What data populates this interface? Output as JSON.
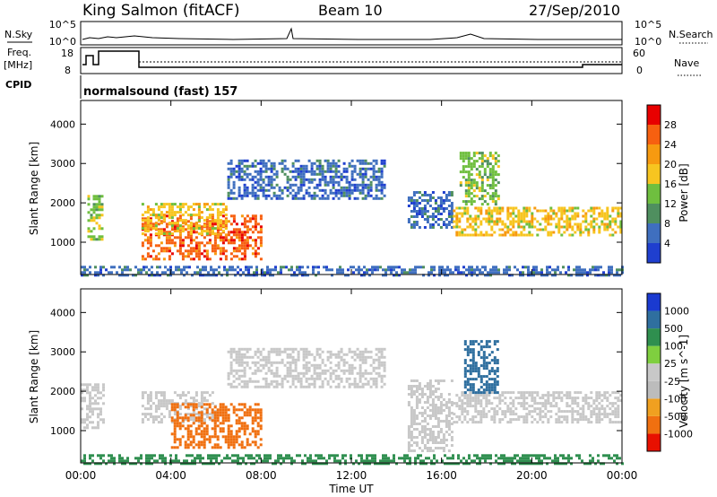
{
  "header": {
    "station": "King Salmon (fitACF)",
    "beam": "Beam 10",
    "date": "27/Sep/2010"
  },
  "strip": {
    "nsky_label": "N.Sky",
    "nsky_ticks": [
      "10^5",
      "10^0"
    ],
    "nsearch_label": "N.Search",
    "nsearch_ticks": [
      "10^5",
      "10^0"
    ],
    "freq_label_1": "Freq.",
    "freq_label_2": "[MHz]",
    "freq_ticks": [
      "18",
      "8"
    ],
    "nave_label": "Nave",
    "nave_ticks": [
      "60",
      "0"
    ],
    "cpid_label": "CPID",
    "cpid_value": "normalsound (fast) 157"
  },
  "colors": {
    "power": [
      "#1f3fcf",
      "#3f6fbf",
      "#4f8f5f",
      "#6fbf3f",
      "#f7c520",
      "#f79a10",
      "#f76010",
      "#e80000"
    ],
    "velocity": [
      "#1a3ad0",
      "#2f6f9f",
      "#2f8f4f",
      "#7fcf3f",
      "#c8c8c8",
      "#bcbcbc",
      "#f0a020",
      "#f07010",
      "#e81000"
    ]
  },
  "chart_data": [
    {
      "type": "heatmap",
      "title": "",
      "xlabel": "Time UT",
      "ylabel": "Slant Range [km]",
      "x_ticks": [
        "00:00",
        "04:00",
        "08:00",
        "12:00",
        "16:00",
        "20:00",
        "00:00"
      ],
      "y_ticks": [
        "1000",
        "2000",
        "3000",
        "4000"
      ],
      "xlim_hours": [
        0,
        24
      ],
      "ylim": [
        180,
        4600
      ],
      "colorbar_label": "Power [dB]",
      "colorbar_ticks": [
        "4",
        "8",
        "12",
        "16",
        "20",
        "24",
        "28"
      ],
      "colorbar_range": [
        0,
        32
      ],
      "regions": [
        {
          "t0": 0.3,
          "t1": 1.0,
          "r0": 1100,
          "r1": 2200,
          "value": 14
        },
        {
          "t0": 2.7,
          "t1": 8.0,
          "r0": 600,
          "r1": 1700,
          "value": 26
        },
        {
          "t0": 2.7,
          "t1": 6.5,
          "r0": 1200,
          "r1": 2000,
          "value": 18
        },
        {
          "t0": 6.5,
          "t1": 13.5,
          "r0": 2100,
          "r1": 3100,
          "value": 6
        },
        {
          "t0": 14.5,
          "t1": 16.5,
          "r0": 1400,
          "r1": 2300,
          "value": 6
        },
        {
          "t0": 16.5,
          "t1": 24.0,
          "r0": 1200,
          "r1": 1900,
          "value": 18
        },
        {
          "t0": 16.8,
          "t1": 18.5,
          "r0": 2000,
          "r1": 3300,
          "value": 14
        },
        {
          "t0": 0.0,
          "t1": 24.0,
          "r0": 180,
          "r1": 400,
          "value": 6
        }
      ]
    },
    {
      "type": "heatmap",
      "title": "",
      "xlabel": "Time UT",
      "ylabel": "Slant Range [km]",
      "x_ticks": [
        "00:00",
        "04:00",
        "08:00",
        "12:00",
        "16:00",
        "20:00",
        "00:00"
      ],
      "y_ticks": [
        "1000",
        "2000",
        "3000",
        "4000"
      ],
      "xlim_hours": [
        0,
        24
      ],
      "ylim": [
        180,
        4600
      ],
      "colorbar_label": "Velocity [m s^-1]",
      "colorbar_ticks": [
        "1000",
        "500",
        "100",
        "25",
        "-25",
        "-100",
        "-500",
        "-1000"
      ],
      "regions": [
        {
          "t0": 0.0,
          "t1": 1.0,
          "r0": 1100,
          "r1": 2200,
          "value": 0
        },
        {
          "t0": 2.7,
          "t1": 6.0,
          "r0": 1200,
          "r1": 2000,
          "value": 0
        },
        {
          "t0": 4.0,
          "t1": 8.0,
          "r0": 600,
          "r1": 1700,
          "value": -150
        },
        {
          "t0": 6.5,
          "t1": 13.5,
          "r0": 2100,
          "r1": 3100,
          "value": 0
        },
        {
          "t0": 14.5,
          "t1": 16.5,
          "r0": 500,
          "r1": 2300,
          "value": 0
        },
        {
          "t0": 16.5,
          "t1": 24.0,
          "r0": 1200,
          "r1": 2000,
          "value": 0
        },
        {
          "t0": 17.0,
          "t1": 18.5,
          "r0": 2000,
          "r1": 3300,
          "value": 150
        },
        {
          "t0": 0.0,
          "t1": 24.0,
          "r0": 180,
          "r1": 400,
          "value": 60
        }
      ]
    }
  ]
}
